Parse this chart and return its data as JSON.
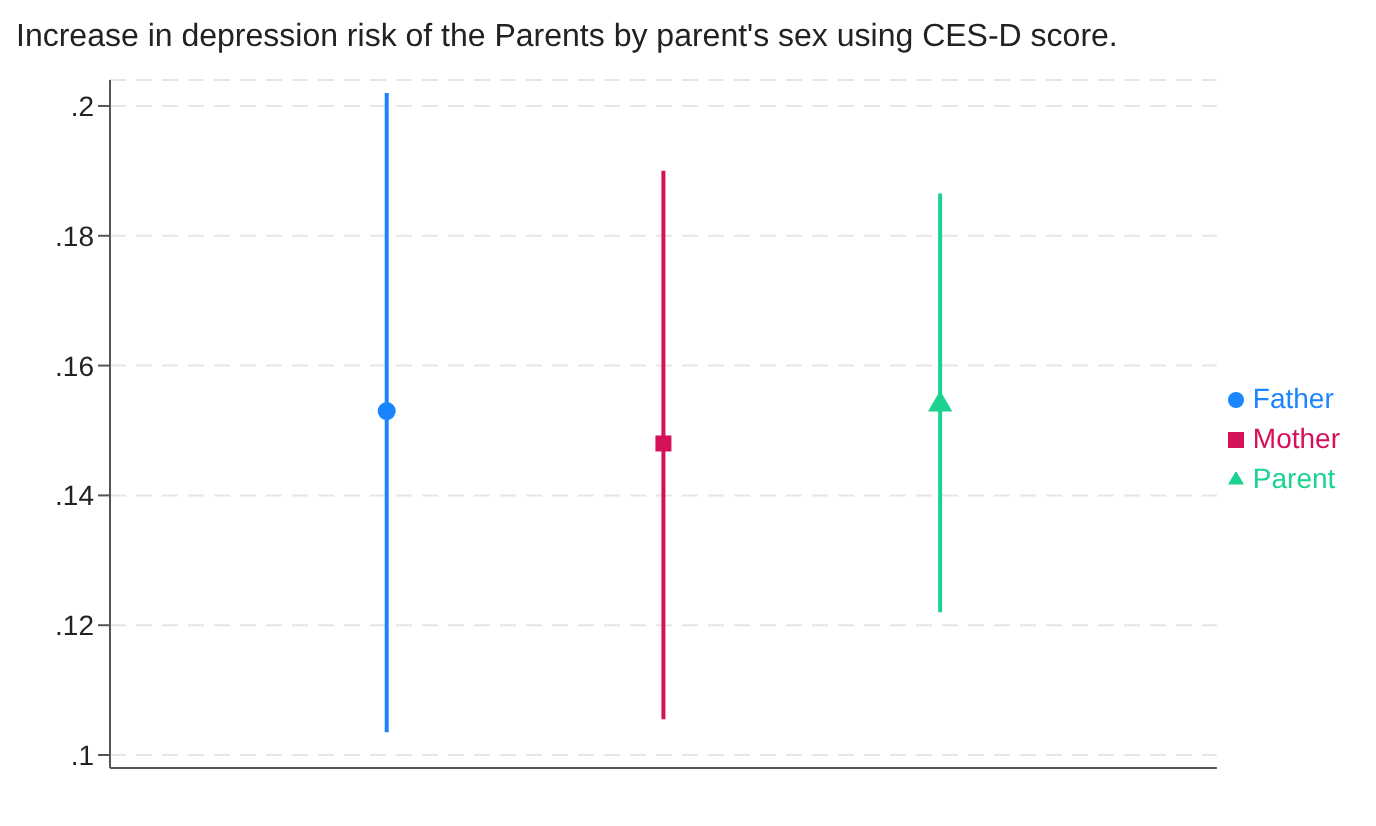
{
  "chart_data": {
    "type": "scatter",
    "title": "Increase in depression risk of the Parents by parent's sex using CES-D score.",
    "categories": [
      null,
      null,
      null
    ],
    "series": [
      {
        "name": "Father",
        "color": "#1a85ff",
        "marker": "circle",
        "values": [
          0.153,
          null,
          null
        ],
        "errors": [
          [
            0.1035,
            0.202
          ],
          null,
          null
        ]
      },
      {
        "name": "Mother",
        "color": "#d41159",
        "marker": "square",
        "values": [
          null,
          0.148,
          null
        ],
        "errors": [
          null,
          [
            0.1055,
            0.19
          ],
          null
        ]
      },
      {
        "name": "Parent",
        "color": "#1bd28f",
        "marker": "triangle",
        "values": [
          null,
          null,
          0.154
        ],
        "errors": [
          null,
          null,
          [
            0.122,
            0.1865
          ]
        ]
      }
    ],
    "ylim": [
      0.098,
      0.204
    ],
    "yticks": [
      {
        "value": 0.1,
        "label": ".1"
      },
      {
        "value": 0.12,
        "label": ".12"
      },
      {
        "value": 0.14,
        "label": ".14"
      },
      {
        "value": 0.16,
        "label": ".16"
      },
      {
        "value": 0.18,
        "label": ".18"
      },
      {
        "value": 0.2,
        "label": ".2"
      }
    ],
    "grid": "y",
    "legend": "right"
  }
}
